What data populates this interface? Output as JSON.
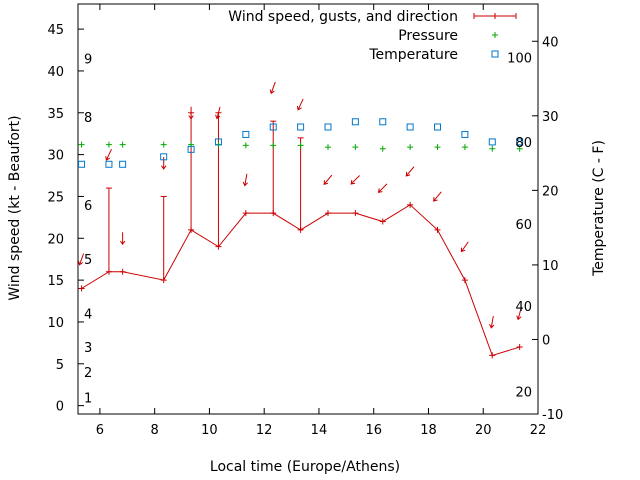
{
  "chart_data": {
    "type": "line",
    "xlabel": "Local time (Europe/Athens)",
    "ylabel": "Wind speed (kt - Beaufort)",
    "y2label": "Temperature (C - F)",
    "xlim": [
      5.2,
      22
    ],
    "ylim": [
      -1,
      48
    ],
    "y2lim": [
      -10,
      45
    ],
    "xticks": [
      6,
      8,
      10,
      12,
      14,
      16,
      18,
      20,
      22
    ],
    "yticks": [
      0,
      5,
      10,
      15,
      20,
      25,
      30,
      35,
      40,
      45
    ],
    "y2ticks": [
      -10,
      0,
      10,
      20,
      30,
      40
    ],
    "beaufort_labels": [
      {
        "label": "1",
        "y": 1
      },
      {
        "label": "2",
        "y": 4
      },
      {
        "label": "3",
        "y": 7
      },
      {
        "label": "4",
        "y": 11
      },
      {
        "label": "5",
        "y": 17.5
      },
      {
        "label": "6",
        "y": 24
      },
      {
        "label": "8",
        "y": 34.5
      },
      {
        "label": "9",
        "y": 41.5
      }
    ],
    "fahrenheit_labels": [
      {
        "label": "20",
        "y2": -7
      },
      {
        "label": "40",
        "y2": 4.5
      },
      {
        "label": "60",
        "y2": 15.5
      },
      {
        "label": "80",
        "y2": 26.5
      },
      {
        "label": "100",
        "y2": 37.8
      }
    ],
    "legend": {
      "placement": "top-right",
      "entries": [
        {
          "label": "Wind speed, gusts, and direction",
          "color": "#cc0000",
          "marker": "line"
        },
        {
          "label": "Pressure",
          "color": "#00aa00",
          "marker": "plus"
        },
        {
          "label": "Temperature",
          "color": "#0077cc",
          "marker": "square"
        }
      ]
    },
    "series": [
      {
        "key": "wind",
        "color": "#cc0000",
        "x": [
          5.33,
          6.33,
          6.83,
          8.33,
          9.33,
          10.33,
          11.33,
          12.33,
          13.33,
          14.33,
          15.33,
          16.33,
          17.33,
          18.33,
          19.33,
          20.33,
          21.33
        ],
        "y": [
          14,
          16,
          16,
          15,
          21,
          19,
          23,
          23,
          21,
          23,
          23,
          22,
          24,
          21,
          15,
          6,
          7
        ],
        "gusts": [
          null,
          26,
          null,
          25,
          35,
          35,
          null,
          34,
          32,
          null,
          null,
          null,
          null,
          null,
          null,
          null,
          null
        ]
      },
      {
        "key": "direction",
        "color": "#cc0000",
        "points": [
          {
            "x": 5.33,
            "y": 17.5,
            "angle": 200
          },
          {
            "x": 6.33,
            "y": 30,
            "angle": 205
          },
          {
            "x": 6.83,
            "y": 20,
            "angle": 180
          },
          {
            "x": 8.33,
            "y": 29,
            "angle": 180
          },
          {
            "x": 9.33,
            "y": 35,
            "angle": 180
          },
          {
            "x": 10.33,
            "y": 35,
            "angle": 195
          },
          {
            "x": 11.33,
            "y": 27,
            "angle": 190
          },
          {
            "x": 12.33,
            "y": 38,
            "angle": 200
          },
          {
            "x": 13.33,
            "y": 36,
            "angle": 205
          },
          {
            "x": 14.33,
            "y": 27,
            "angle": 220
          },
          {
            "x": 15.33,
            "y": 27,
            "angle": 225
          },
          {
            "x": 16.33,
            "y": 26,
            "angle": 225
          },
          {
            "x": 17.33,
            "y": 28,
            "angle": 220
          },
          {
            "x": 18.33,
            "y": 25,
            "angle": 220
          },
          {
            "x": 19.33,
            "y": 19,
            "angle": 215
          },
          {
            "x": 20.33,
            "y": 10,
            "angle": 190
          },
          {
            "x": 21.33,
            "y": 11,
            "angle": 195
          }
        ]
      },
      {
        "key": "pressure",
        "color": "#00aa00",
        "x": [
          5.33,
          6.33,
          6.83,
          8.33,
          9.33,
          10.33,
          11.33,
          12.33,
          13.33,
          14.33,
          15.33,
          16.33,
          17.33,
          18.33,
          19.33,
          20.33,
          21.33
        ],
        "y": [
          31.2,
          31.2,
          31.2,
          31.2,
          31.2,
          31.2,
          31.1,
          31.1,
          31.1,
          30.9,
          30.9,
          30.7,
          30.9,
          30.9,
          30.9,
          30.7,
          30.7
        ]
      },
      {
        "key": "temperature",
        "color": "#0077cc",
        "x": [
          5.33,
          6.33,
          6.83,
          8.33,
          9.33,
          10.33,
          11.33,
          12.33,
          13.33,
          14.33,
          15.33,
          16.33,
          17.33,
          18.33,
          19.33,
          20.33,
          21.33
        ],
        "y": [
          23.5,
          23.5,
          23.5,
          24.5,
          25.5,
          26.5,
          27.5,
          28.5,
          28.5,
          28.5,
          29.2,
          29.2,
          28.5,
          28.5,
          27.5,
          26.5,
          26.5
        ]
      }
    ]
  }
}
